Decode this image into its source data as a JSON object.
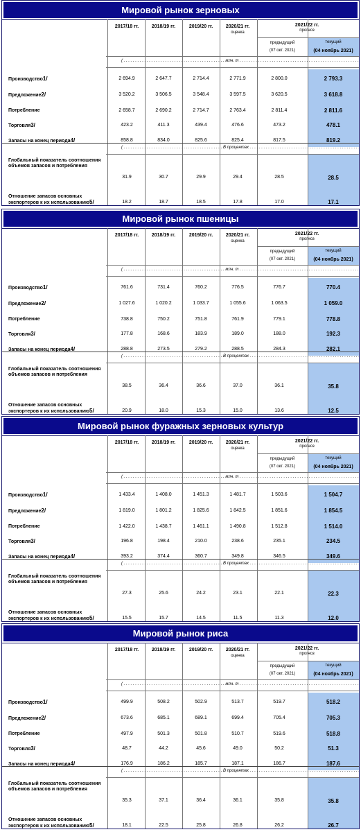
{
  "columns": {
    "years": [
      "2017/18 гг.",
      "2018/19 гг.",
      "2019/20 гг.",
      "2020/21 гг.",
      "2021/22 гг."
    ],
    "estimate": "оценка",
    "forecast": "прогноз",
    "previous_1": "предыдущий",
    "previous_2": "(07 окт. 2021)",
    "current_1": "текущий",
    "current_2": "(04 ноябрь 2021)"
  },
  "units": {
    "mln_t": "(  . . . . . . . . . . . . . . . . . . . . . . . . . . . . . . . . . . . . . . . . . . . . млн. т . . . . . . . . . . . . . . . . . . . . . . . . . . . . . . . . . . . . . . . . . . . . . . . . . . . . . . . . . )",
    "percent": "(  . . . . . . . . . . . . . . . . . . . . . . . . . . . . . . . . . . . . . . . . . . . В процентах . . . . . . . . . . . . . . . . . . . . . . . . . . . . . . . . . . . . . . . . . . . . . . . . . . . . . )"
  },
  "row_labels": {
    "production": "Производство",
    "production_note": "1/",
    "supply": "Предложение",
    "supply_note": "2/",
    "consumption": "Потребление",
    "trade": "Торговля",
    "trade_note": "3/",
    "stocks": "Запасы на конец периода",
    "stocks_note": "4/",
    "ratio_global": "Глобальный показатель соотношения объемов запасов и потребления",
    "ratio_exporters": "Отношение запасов основных экспортеров к их использованию",
    "ratio_exporters_note": "5/"
  },
  "blocks": [
    {
      "title": "Мировой рынок зерновых",
      "production": [
        "2 694.9",
        "2 647.7",
        "2 714.4",
        "2 771.9",
        "2 800.0",
        "2 793.3"
      ],
      "supply": [
        "3 520.2",
        "3 506.5",
        "3 548.4",
        "3 597.5",
        "3 620.5",
        "3 618.8"
      ],
      "consumption": [
        "2 658.7",
        "2 690.2",
        "2 714.7",
        "2 763.4",
        "2 811.4",
        "2 811.6"
      ],
      "trade": [
        "423.2",
        "411.3",
        "439.4",
        "476.6",
        "473.2",
        "478.1"
      ],
      "stocks": [
        "858.8",
        "834.0",
        "825.6",
        "825.4",
        "817.5",
        "819.2"
      ],
      "ratio_global": [
        "31.9",
        "30.7",
        "29.9",
        "29.4",
        "28.5",
        "28.5"
      ],
      "ratio_exporters": [
        "18.2",
        "18.7",
        "18.5",
        "17.8",
        "17.0",
        "17.1"
      ]
    },
    {
      "title": "Мировой рынок пшеницы",
      "production": [
        "761.6",
        "731.4",
        "760.2",
        "776.5",
        "776.7",
        "770.4"
      ],
      "supply": [
        "1 027.6",
        "1 020.2",
        "1 033.7",
        "1 055.6",
        "1 063.5",
        "1 059.0"
      ],
      "consumption": [
        "738.8",
        "750.2",
        "751.8",
        "761.9",
        "779.1",
        "778.8"
      ],
      "trade": [
        "177.8",
        "168.6",
        "183.9",
        "189.0",
        "188.0",
        "192.3"
      ],
      "stocks": [
        "288.8",
        "273.5",
        "279.2",
        "288.5",
        "284.3",
        "282.1"
      ],
      "ratio_global": [
        "38.5",
        "36.4",
        "36.6",
        "37.0",
        "36.1",
        "35.8"
      ],
      "ratio_exporters": [
        "20.9",
        "18.0",
        "15.3",
        "15.0",
        "13.6",
        "12.5"
      ]
    },
    {
      "title": "Мировой рынок фуражных зерновых культур",
      "production": [
        "1 433.4",
        "1 408.0",
        "1 451.3",
        "1 481.7",
        "1 503.6",
        "1 504.7"
      ],
      "supply": [
        "1 819.0",
        "1 801.2",
        "1 825.6",
        "1 842.5",
        "1 851.6",
        "1 854.5"
      ],
      "consumption": [
        "1 422.0",
        "1 438.7",
        "1 461.1",
        "1 490.8",
        "1 512.8",
        "1 514.0"
      ],
      "trade": [
        "196.8",
        "198.4",
        "210.0",
        "238.6",
        "235.1",
        "234.5"
      ],
      "stocks": [
        "393.2",
        "374.4",
        "360.7",
        "349.8",
        "346.5",
        "349.6"
      ],
      "ratio_global": [
        "27.3",
        "25.6",
        "24.2",
        "23.1",
        "22.1",
        "22.3"
      ],
      "ratio_exporters": [
        "15.5",
        "15.7",
        "14.5",
        "11.5",
        "11.3",
        "12.0"
      ]
    },
    {
      "title": "Мировой рынок риса",
      "production": [
        "499.9",
        "508.2",
        "502.9",
        "513.7",
        "519.7",
        "518.2"
      ],
      "supply": [
        "673.6",
        "685.1",
        "689.1",
        "699.4",
        "705.4",
        "705.3"
      ],
      "consumption": [
        "497.9",
        "501.3",
        "501.8",
        "510.7",
        "519.6",
        "518.8"
      ],
      "trade": [
        "48.7",
        "44.2",
        "45.6",
        "49.0",
        "50.2",
        "51.3"
      ],
      "stocks": [
        "176.9",
        "186.2",
        "185.7",
        "187.1",
        "186.7",
        "187.6"
      ],
      "ratio_global": [
        "35.3",
        "37.1",
        "36.4",
        "36.1",
        "35.8",
        "35.8"
      ],
      "ratio_exporters": [
        "18.1",
        "22.5",
        "25.8",
        "26.8",
        "26.2",
        "26.7"
      ]
    }
  ]
}
